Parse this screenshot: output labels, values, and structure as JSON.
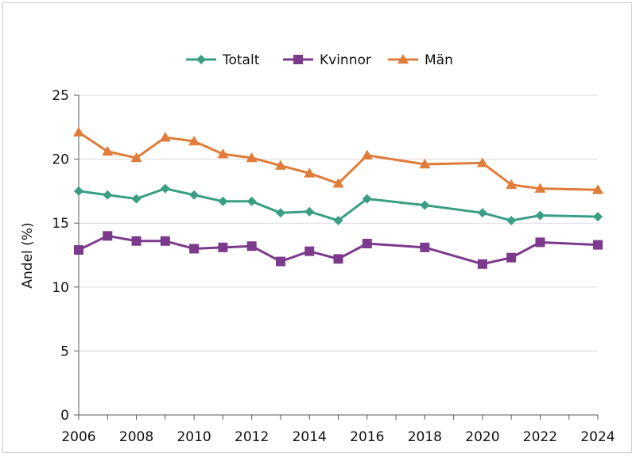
{
  "chart_data": {
    "type": "line",
    "title": "",
    "xlabel": "",
    "ylabel": "Andel (%)",
    "ylim": [
      0,
      25
    ],
    "xlim": [
      2006,
      2024
    ],
    "y_ticks": [
      "0",
      "5",
      "10",
      "15",
      "20",
      "25"
    ],
    "x_ticks": [
      "2006",
      "2008",
      "2010",
      "2012",
      "2014",
      "2016",
      "2018",
      "2020",
      "2022",
      "2024"
    ],
    "grid": "horizontal",
    "legend_position": "top",
    "x": [
      2006,
      2007,
      2008,
      2009,
      2010,
      2011,
      2012,
      2013,
      2014,
      2015,
      2016,
      2018,
      2020,
      2021,
      2022,
      2024
    ],
    "series": [
      {
        "name": "Totalt",
        "color": "#3a9e84",
        "marker": "diamond",
        "values": [
          17.5,
          17.2,
          16.9,
          17.7,
          17.2,
          16.7,
          16.7,
          15.8,
          15.9,
          15.2,
          16.9,
          16.4,
          15.8,
          15.2,
          15.6,
          15.5
        ]
      },
      {
        "name": "Kvinnor",
        "color": "#7b3a8c",
        "marker": "square",
        "values": [
          12.9,
          14.0,
          13.6,
          13.6,
          13.0,
          13.1,
          13.2,
          12.0,
          12.8,
          12.2,
          13.4,
          13.1,
          11.8,
          12.3,
          13.5,
          13.3
        ]
      },
      {
        "name": "Män",
        "color": "#e07b39",
        "marker": "triangle",
        "values": [
          22.1,
          20.6,
          20.1,
          21.7,
          21.4,
          20.4,
          20.1,
          19.5,
          18.9,
          18.1,
          20.3,
          19.6,
          19.7,
          18.0,
          17.7,
          17.6
        ]
      }
    ]
  }
}
